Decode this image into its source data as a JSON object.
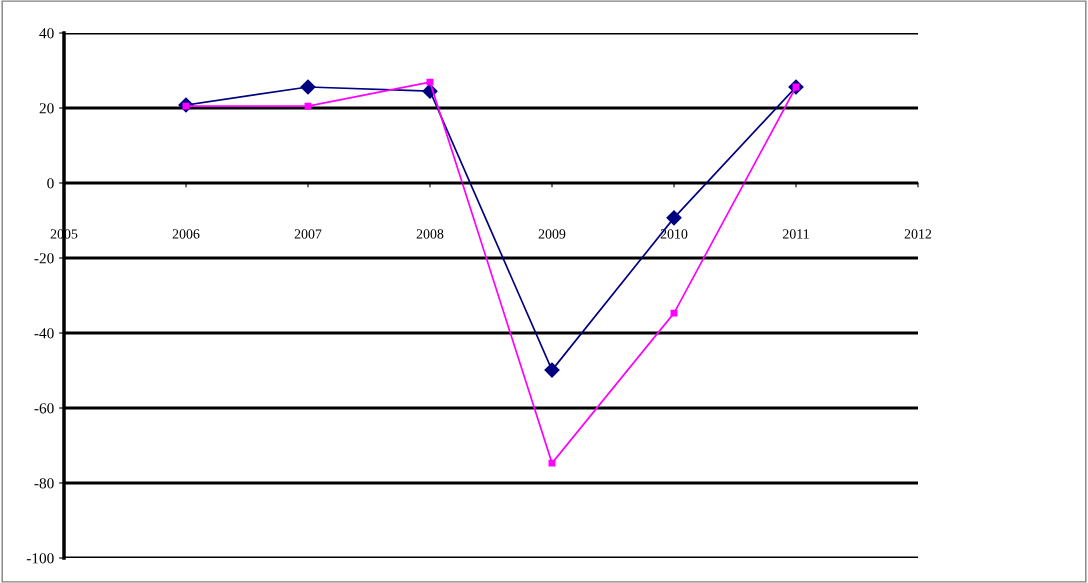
{
  "chart_data": {
    "type": "line",
    "x": [
      2006,
      2007,
      2008,
      2009,
      2010,
      2011
    ],
    "series": [
      {
        "color": "#000080",
        "marker": "diamond",
        "values": [
          20.8,
          25.6,
          24.5,
          -49.9,
          -9.3,
          25.6
        ]
      },
      {
        "color": "#ff00ff",
        "marker": "square",
        "values": [
          20.5,
          20.5,
          26.9,
          -74.7,
          -34.7,
          25.6
        ]
      }
    ],
    "xlim": [
      2005,
      2012
    ],
    "xticks": [
      2005,
      2006,
      2007,
      2008,
      2009,
      2010,
      2011,
      2012
    ],
    "ylim": [
      -100,
      40
    ],
    "yticks": [
      -100,
      -80,
      -60,
      -40,
      -20,
      0,
      20,
      40
    ],
    "grid": "y",
    "line_style": "solid"
  }
}
